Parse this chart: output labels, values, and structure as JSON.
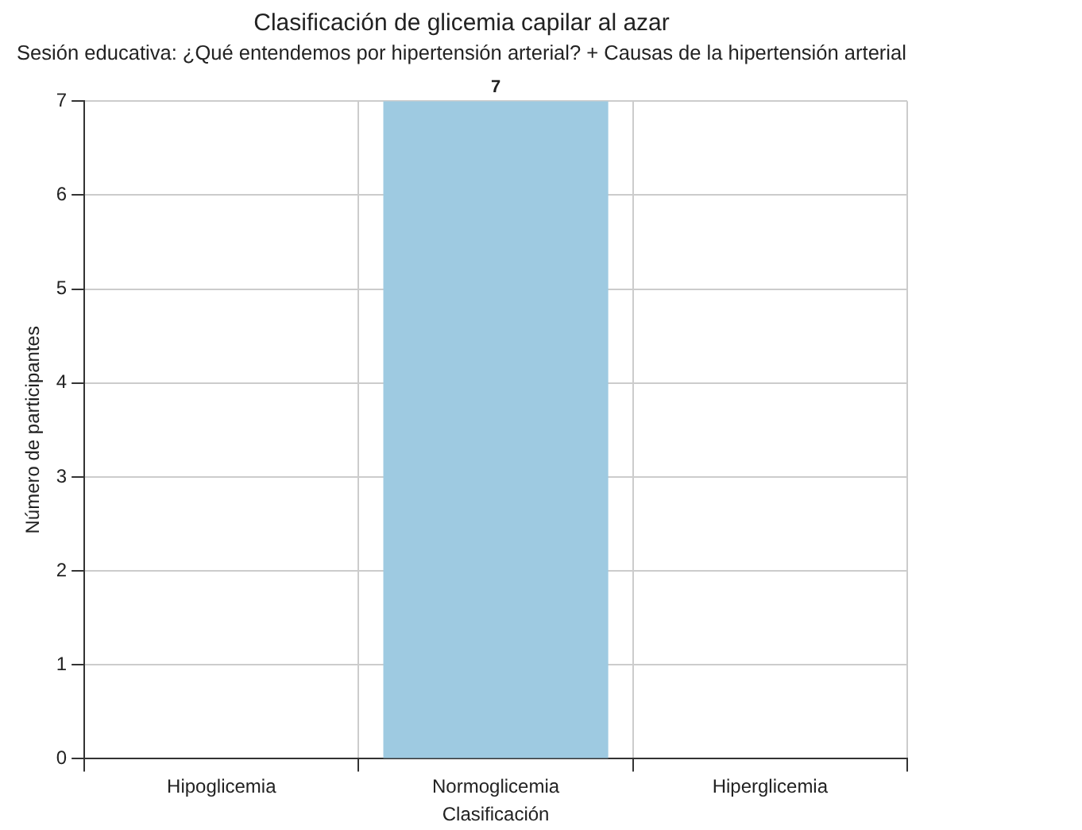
{
  "chart_data": {
    "type": "bar",
    "title": "Clasificación de glicemia capilar al azar",
    "subtitle": "Sesión educativa: ¿Qué entendemos por hipertensión arterial? + Causas de la hipertensión arterial",
    "xlabel": "Clasificación",
    "ylabel": "Número de participantes",
    "categories": [
      "Hipoglicemia",
      "Normoglicemia",
      "Hiperglicemia"
    ],
    "values": [
      0,
      7,
      0
    ],
    "color": "#9ecae1",
    "value_labels": [
      null,
      "7",
      null
    ],
    "ylim": [
      0,
      7
    ],
    "yticks": [
      0,
      1,
      2,
      3,
      4,
      5,
      6,
      7
    ],
    "grid": true,
    "legend": false
  }
}
